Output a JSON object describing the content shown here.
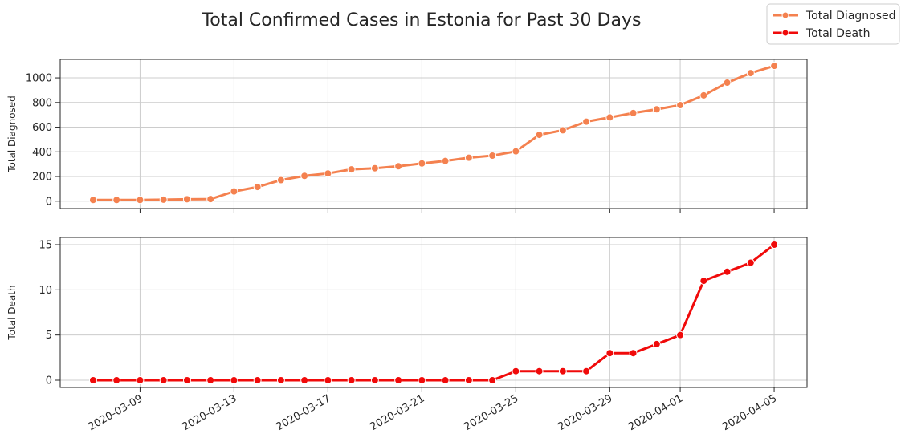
{
  "chart_data": {
    "type": "line",
    "title": "Total Confirmed Cases in Estonia for Past 30 Days",
    "legend": {
      "placement": "top-right",
      "entries": [
        "Total Diagnosed",
        "Total Death"
      ]
    },
    "x": [
      "2020-03-07",
      "2020-03-08",
      "2020-03-09",
      "2020-03-10",
      "2020-03-11",
      "2020-03-12",
      "2020-03-13",
      "2020-03-14",
      "2020-03-15",
      "2020-03-16",
      "2020-03-17",
      "2020-03-18",
      "2020-03-19",
      "2020-03-20",
      "2020-03-21",
      "2020-03-22",
      "2020-03-23",
      "2020-03-24",
      "2020-03-25",
      "2020-03-26",
      "2020-03-27",
      "2020-03-28",
      "2020-03-29",
      "2020-03-30",
      "2020-03-31",
      "2020-04-01",
      "2020-04-02",
      "2020-04-03",
      "2020-04-04",
      "2020-04-05"
    ],
    "xticks": [
      "2020-03-09",
      "2020-03-13",
      "2020-03-17",
      "2020-03-21",
      "2020-03-25",
      "2020-03-29",
      "2020-04-01",
      "2020-04-05"
    ],
    "grid": true,
    "series": [
      {
        "name": "Total Diagnosed",
        "color": "#f4814f",
        "ylabel": "Total Diagnosed",
        "ylim": [
          -60,
          1150
        ],
        "yticks": [
          0,
          200,
          400,
          600,
          800,
          1000
        ],
        "values": [
          10,
          10,
          10,
          12,
          16,
          17,
          79,
          115,
          171,
          205,
          225,
          258,
          267,
          283,
          306,
          326,
          352,
          369,
          404,
          538,
          575,
          645,
          679,
          715,
          745,
          779,
          858,
          961,
          1039,
          1097
        ]
      },
      {
        "name": "Total Death",
        "color": "#f00a0a",
        "ylabel": "Total Death",
        "ylim": [
          -0.8,
          15.8
        ],
        "yticks": [
          0,
          5,
          10,
          15
        ],
        "values": [
          0,
          0,
          0,
          0,
          0,
          0,
          0,
          0,
          0,
          0,
          0,
          0,
          0,
          0,
          0,
          0,
          0,
          0,
          1,
          1,
          1,
          1,
          3,
          3,
          4,
          5,
          11,
          12,
          13,
          15
        ]
      }
    ]
  }
}
